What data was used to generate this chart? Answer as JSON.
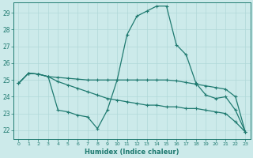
{
  "xlabel": "Humidex (Indice chaleur)",
  "xlim": [
    -0.5,
    23.5
  ],
  "ylim": [
    21.5,
    29.6
  ],
  "yticks": [
    22,
    23,
    24,
    25,
    26,
    27,
    28,
    29
  ],
  "xticks": [
    0,
    1,
    2,
    3,
    4,
    5,
    6,
    7,
    8,
    9,
    10,
    11,
    12,
    13,
    14,
    15,
    16,
    17,
    18,
    19,
    20,
    21,
    22,
    23
  ],
  "bg_color": "#cceaea",
  "line_color": "#1f7a70",
  "grid_color": "#b0d8d8",
  "line1_x": [
    0,
    1,
    2,
    3,
    4,
    5,
    6,
    7,
    8,
    9,
    10,
    11,
    12,
    13,
    14,
    15,
    16,
    17,
    18,
    19,
    20,
    21,
    22,
    23
  ],
  "line1_y": [
    24.8,
    25.4,
    25.35,
    25.2,
    25.15,
    25.1,
    25.05,
    25.0,
    25.0,
    25.0,
    25.0,
    25.0,
    25.0,
    25.0,
    25.0,
    25.0,
    24.95,
    24.85,
    24.75,
    24.65,
    24.55,
    24.45,
    24.0,
    21.9
  ],
  "line2_x": [
    0,
    1,
    2,
    3,
    4,
    5,
    6,
    7,
    8,
    9,
    10,
    11,
    12,
    13,
    14,
    15,
    16,
    17,
    18,
    19,
    20,
    21,
    22,
    23
  ],
  "line2_y": [
    24.8,
    25.4,
    25.35,
    25.2,
    23.2,
    23.1,
    22.9,
    22.8,
    22.1,
    23.2,
    25.0,
    27.7,
    28.8,
    29.1,
    29.4,
    29.4,
    27.1,
    26.5,
    24.8,
    24.1,
    23.9,
    24.0,
    23.2,
    21.9
  ],
  "line3_x": [
    0,
    1,
    2,
    3,
    4,
    5,
    6,
    7,
    8,
    9,
    10,
    11,
    12,
    13,
    14,
    15,
    16,
    17,
    18,
    19,
    20,
    21,
    22,
    23
  ],
  "line3_y": [
    24.8,
    25.4,
    25.35,
    25.2,
    24.9,
    24.7,
    24.5,
    24.3,
    24.1,
    23.9,
    23.8,
    23.7,
    23.6,
    23.5,
    23.5,
    23.4,
    23.4,
    23.3,
    23.3,
    23.2,
    23.1,
    23.0,
    22.5,
    21.9
  ]
}
